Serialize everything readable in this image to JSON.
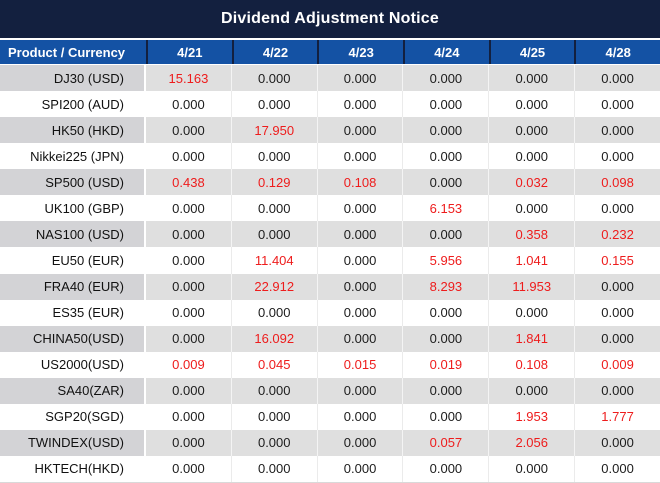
{
  "title": "Dividend Adjustment Notice",
  "colors": {
    "title_bg": "#13203f",
    "header_bg": "#1452a4",
    "header_text": "#ffffff",
    "alt_row_label_bg": "#d3d3d6",
    "alt_row_value_bg": "#dfdfdf",
    "row_bg": "#ffffff",
    "zero_value_text": "#1c1c1c",
    "nonzero_value_text": "#ee1c1c"
  },
  "chart_data": {
    "type": "table",
    "title": "Dividend Adjustment Notice",
    "columns": [
      "Product / Currency",
      "4/21",
      "4/22",
      "4/23",
      "4/24",
      "4/25",
      "4/28"
    ],
    "rows": [
      {
        "product": "DJ30 (USD)",
        "values": [
          "15.163",
          "0.000",
          "0.000",
          "0.000",
          "0.000",
          "0.000"
        ]
      },
      {
        "product": "SPI200 (AUD)",
        "values": [
          "0.000",
          "0.000",
          "0.000",
          "0.000",
          "0.000",
          "0.000"
        ]
      },
      {
        "product": "HK50 (HKD)",
        "values": [
          "0.000",
          "17.950",
          "0.000",
          "0.000",
          "0.000",
          "0.000"
        ]
      },
      {
        "product": "Nikkei225 (JPN)",
        "values": [
          "0.000",
          "0.000",
          "0.000",
          "0.000",
          "0.000",
          "0.000"
        ]
      },
      {
        "product": "SP500 (USD)",
        "values": [
          "0.438",
          "0.129",
          "0.108",
          "0.000",
          "0.032",
          "0.098"
        ]
      },
      {
        "product": "UK100 (GBP)",
        "values": [
          "0.000",
          "0.000",
          "0.000",
          "6.153",
          "0.000",
          "0.000"
        ]
      },
      {
        "product": "NAS100 (USD)",
        "values": [
          "0.000",
          "0.000",
          "0.000",
          "0.000",
          "0.358",
          "0.232"
        ]
      },
      {
        "product": "EU50 (EUR)",
        "values": [
          "0.000",
          "11.404",
          "0.000",
          "5.956",
          "1.041",
          "0.155"
        ]
      },
      {
        "product": "FRA40 (EUR)",
        "values": [
          "0.000",
          "22.912",
          "0.000",
          "8.293",
          "11.953",
          "0.000"
        ]
      },
      {
        "product": "ES35 (EUR)",
        "values": [
          "0.000",
          "0.000",
          "0.000",
          "0.000",
          "0.000",
          "0.000"
        ]
      },
      {
        "product": "CHINA50(USD)",
        "values": [
          "0.000",
          "16.092",
          "0.000",
          "0.000",
          "1.841",
          "0.000"
        ]
      },
      {
        "product": "US2000(USD)",
        "values": [
          "0.009",
          "0.045",
          "0.015",
          "0.019",
          "0.108",
          "0.009"
        ]
      },
      {
        "product": "SA40(ZAR)",
        "values": [
          "0.000",
          "0.000",
          "0.000",
          "0.000",
          "0.000",
          "0.000"
        ]
      },
      {
        "product": "SGP20(SGD)",
        "values": [
          "0.000",
          "0.000",
          "0.000",
          "0.000",
          "1.953",
          "1.777"
        ]
      },
      {
        "product": "TWINDEX(USD)",
        "values": [
          "0.000",
          "0.000",
          "0.000",
          "0.057",
          "2.056",
          "0.000"
        ]
      },
      {
        "product": "HKTECH(HKD)",
        "values": [
          "0.000",
          "0.000",
          "0.000",
          "0.000",
          "0.000",
          "0.000"
        ]
      }
    ],
    "style_rules": {
      "nonzero_values": "red text",
      "zero_values": "black text",
      "striping": "alternate rows shaded gray starting with first data row"
    }
  }
}
